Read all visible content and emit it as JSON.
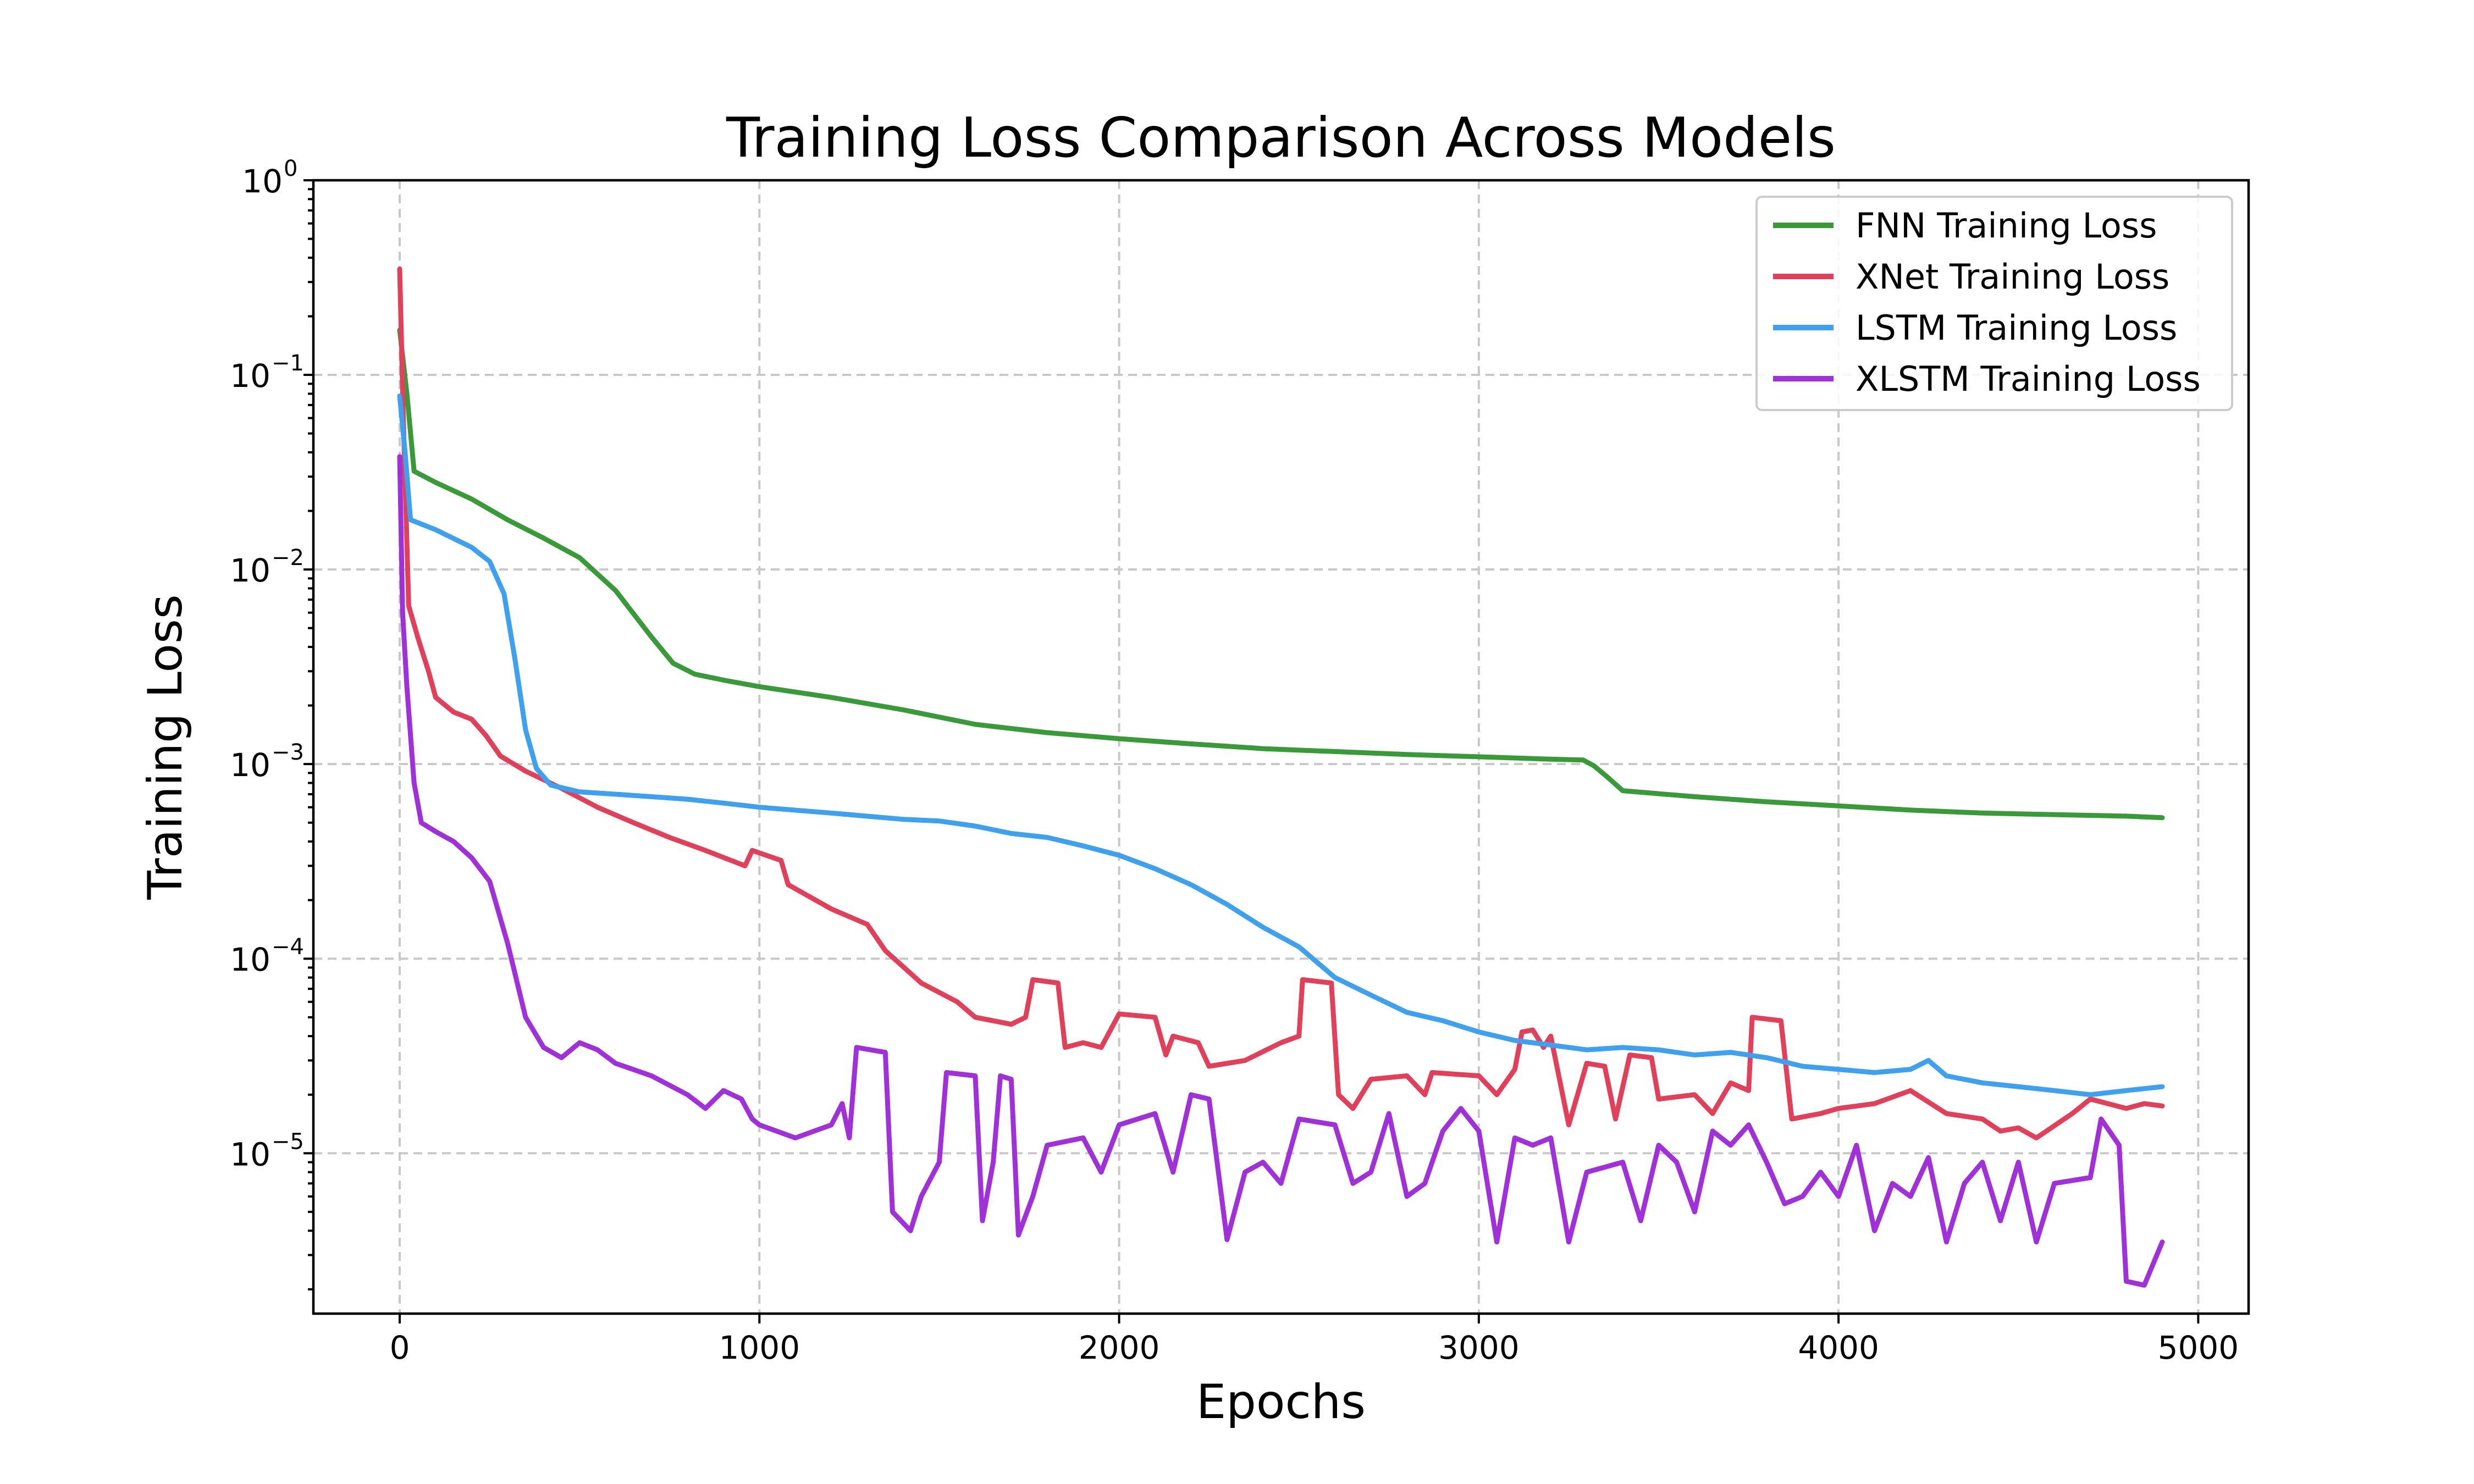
{
  "chart_data": {
    "type": "line",
    "title": "Training Loss Comparison Across Models",
    "xlabel": "Epochs",
    "ylabel": "Training Loss",
    "yscale": "log",
    "xlim": [
      -240,
      5140
    ],
    "ylim": [
      1.5e-06,
      1
    ],
    "xticks": [
      0,
      1000,
      2000,
      3000,
      4000,
      5000
    ],
    "xtick_labels": [
      "0",
      "1000",
      "2000",
      "3000",
      "4000",
      "5000"
    ],
    "yticks": [
      {
        "value": 1.0,
        "base": "10",
        "exp": "0"
      },
      {
        "value": 0.1,
        "base": "10",
        "exp": "−1"
      },
      {
        "value": 0.01,
        "base": "10",
        "exp": "−2"
      },
      {
        "value": 0.001,
        "base": "10",
        "exp": "−3"
      },
      {
        "value": 0.0001,
        "base": "10",
        "exp": "−4"
      },
      {
        "value": 1e-05,
        "base": "10",
        "exp": "−5"
      }
    ],
    "grid": true,
    "legend_position": "upper-right",
    "series": [
      {
        "name": "FNN Training Loss",
        "color": "#3a9a3a",
        "points": [
          [
            0,
            0.17
          ],
          [
            20,
            0.08
          ],
          [
            40,
            0.032
          ],
          [
            100,
            0.028
          ],
          [
            200,
            0.023
          ],
          [
            300,
            0.018
          ],
          [
            400,
            0.0145
          ],
          [
            500,
            0.0115
          ],
          [
            600,
            0.0078
          ],
          [
            700,
            0.0045
          ],
          [
            760,
            0.0033
          ],
          [
            820,
            0.0029
          ],
          [
            900,
            0.0027
          ],
          [
            1000,
            0.0025
          ],
          [
            1200,
            0.0022
          ],
          [
            1400,
            0.0019
          ],
          [
            1600,
            0.0016
          ],
          [
            1800,
            0.00145
          ],
          [
            2000,
            0.00135
          ],
          [
            2200,
            0.00127
          ],
          [
            2400,
            0.0012
          ],
          [
            2600,
            0.00116
          ],
          [
            2800,
            0.00112
          ],
          [
            3000,
            0.00109
          ],
          [
            3200,
            0.00106
          ],
          [
            3290,
            0.00105
          ],
          [
            3320,
            0.00098
          ],
          [
            3360,
            0.00085
          ],
          [
            3400,
            0.00073
          ],
          [
            3600,
            0.00068
          ],
          [
            3800,
            0.00064
          ],
          [
            4000,
            0.00061
          ],
          [
            4200,
            0.00058
          ],
          [
            4400,
            0.00056
          ],
          [
            4600,
            0.00055
          ],
          [
            4800,
            0.00054
          ],
          [
            4900,
            0.00053
          ]
        ]
      },
      {
        "name": "XNet Training Loss",
        "color": "#e0405a",
        "points": [
          [
            0,
            0.35
          ],
          [
            10,
            0.06
          ],
          [
            25,
            0.0065
          ],
          [
            50,
            0.0045
          ],
          [
            80,
            0.003
          ],
          [
            100,
            0.0022
          ],
          [
            150,
            0.00185
          ],
          [
            200,
            0.0017
          ],
          [
            240,
            0.0014
          ],
          [
            280,
            0.0011
          ],
          [
            350,
            0.00092
          ],
          [
            450,
            0.00075
          ],
          [
            550,
            0.0006
          ],
          [
            650,
            0.0005
          ],
          [
            750,
            0.00042
          ],
          [
            850,
            0.00036
          ],
          [
            960,
            0.0003
          ],
          [
            980,
            0.00036
          ],
          [
            1060,
            0.00032
          ],
          [
            1080,
            0.00024
          ],
          [
            1200,
            0.00018
          ],
          [
            1300,
            0.00015
          ],
          [
            1350,
            0.00011
          ],
          [
            1450,
            7.5e-05
          ],
          [
            1550,
            6e-05
          ],
          [
            1600,
            5e-05
          ],
          [
            1700,
            4.6e-05
          ],
          [
            1740,
            5e-05
          ],
          [
            1760,
            7.8e-05
          ],
          [
            1830,
            7.5e-05
          ],
          [
            1850,
            3.5e-05
          ],
          [
            1900,
            3.7e-05
          ],
          [
            1950,
            3.5e-05
          ],
          [
            2000,
            5.2e-05
          ],
          [
            2100,
            5e-05
          ],
          [
            2130,
            3.2e-05
          ],
          [
            2150,
            4e-05
          ],
          [
            2220,
            3.7e-05
          ],
          [
            2250,
            2.8e-05
          ],
          [
            2350,
            3e-05
          ],
          [
            2450,
            3.7e-05
          ],
          [
            2500,
            4e-05
          ],
          [
            2510,
            7.8e-05
          ],
          [
            2590,
            7.5e-05
          ],
          [
            2610,
            2e-05
          ],
          [
            2650,
            1.7e-05
          ],
          [
            2700,
            2.4e-05
          ],
          [
            2800,
            2.5e-05
          ],
          [
            2850,
            2e-05
          ],
          [
            2870,
            2.6e-05
          ],
          [
            3000,
            2.5e-05
          ],
          [
            3050,
            2e-05
          ],
          [
            3100,
            2.7e-05
          ],
          [
            3120,
            4.2e-05
          ],
          [
            3150,
            4.3e-05
          ],
          [
            3180,
            3.5e-05
          ],
          [
            3200,
            4e-05
          ],
          [
            3250,
            1.4e-05
          ],
          [
            3300,
            2.9e-05
          ],
          [
            3350,
            2.8e-05
          ],
          [
            3380,
            1.5e-05
          ],
          [
            3420,
            3.2e-05
          ],
          [
            3480,
            3.1e-05
          ],
          [
            3500,
            1.9e-05
          ],
          [
            3600,
            2e-05
          ],
          [
            3650,
            1.6e-05
          ],
          [
            3700,
            2.3e-05
          ],
          [
            3750,
            2.1e-05
          ],
          [
            3760,
            5e-05
          ],
          [
            3840,
            4.8e-05
          ],
          [
            3870,
            1.5e-05
          ],
          [
            3950,
            1.6e-05
          ],
          [
            4000,
            1.7e-05
          ],
          [
            4100,
            1.8e-05
          ],
          [
            4200,
            2.1e-05
          ],
          [
            4300,
            1.6e-05
          ],
          [
            4400,
            1.5e-05
          ],
          [
            4450,
            1.3e-05
          ],
          [
            4500,
            1.35e-05
          ],
          [
            4550,
            1.2e-05
          ],
          [
            4650,
            1.6e-05
          ],
          [
            4700,
            1.9e-05
          ],
          [
            4800,
            1.7e-05
          ],
          [
            4850,
            1.8e-05
          ],
          [
            4900,
            1.75e-05
          ]
        ]
      },
      {
        "name": "LSTM Training Loss",
        "color": "#3fa0ee",
        "points": [
          [
            0,
            0.078
          ],
          [
            15,
            0.04
          ],
          [
            30,
            0.018
          ],
          [
            100,
            0.016
          ],
          [
            200,
            0.013
          ],
          [
            250,
            0.011
          ],
          [
            290,
            0.0075
          ],
          [
            320,
            0.0035
          ],
          [
            350,
            0.0015
          ],
          [
            380,
            0.00095
          ],
          [
            420,
            0.00078
          ],
          [
            500,
            0.00072
          ],
          [
            600,
            0.0007
          ],
          [
            700,
            0.00068
          ],
          [
            800,
            0.00066
          ],
          [
            900,
            0.00063
          ],
          [
            1000,
            0.0006
          ],
          [
            1200,
            0.00056
          ],
          [
            1400,
            0.00052
          ],
          [
            1500,
            0.00051
          ],
          [
            1600,
            0.00048
          ],
          [
            1700,
            0.00044
          ],
          [
            1800,
            0.00042
          ],
          [
            1900,
            0.00038
          ],
          [
            2000,
            0.00034
          ],
          [
            2100,
            0.00029
          ],
          [
            2200,
            0.00024
          ],
          [
            2300,
            0.00019
          ],
          [
            2400,
            0.000145
          ],
          [
            2500,
            0.000115
          ],
          [
            2600,
            8e-05
          ],
          [
            2700,
            6.5e-05
          ],
          [
            2800,
            5.3e-05
          ],
          [
            2900,
            4.8e-05
          ],
          [
            3000,
            4.2e-05
          ],
          [
            3100,
            3.8e-05
          ],
          [
            3200,
            3.6e-05
          ],
          [
            3300,
            3.4e-05
          ],
          [
            3400,
            3.5e-05
          ],
          [
            3500,
            3.4e-05
          ],
          [
            3600,
            3.2e-05
          ],
          [
            3700,
            3.3e-05
          ],
          [
            3800,
            3.1e-05
          ],
          [
            3900,
            2.8e-05
          ],
          [
            4000,
            2.7e-05
          ],
          [
            4100,
            2.6e-05
          ],
          [
            4200,
            2.7e-05
          ],
          [
            4250,
            3e-05
          ],
          [
            4300,
            2.5e-05
          ],
          [
            4400,
            2.3e-05
          ],
          [
            4500,
            2.2e-05
          ],
          [
            4600,
            2.1e-05
          ],
          [
            4700,
            2e-05
          ],
          [
            4800,
            2.1e-05
          ],
          [
            4900,
            2.2e-05
          ]
        ]
      },
      {
        "name": "XLSTM Training Loss",
        "color": "#a030d8",
        "points": [
          [
            0,
            0.038
          ],
          [
            8,
            0.006
          ],
          [
            20,
            0.0025
          ],
          [
            40,
            0.0008
          ],
          [
            60,
            0.0005
          ],
          [
            100,
            0.00045
          ],
          [
            150,
            0.0004
          ],
          [
            200,
            0.00033
          ],
          [
            250,
            0.00025
          ],
          [
            300,
            0.00012
          ],
          [
            350,
            5e-05
          ],
          [
            400,
            3.5e-05
          ],
          [
            450,
            3.1e-05
          ],
          [
            500,
            3.7e-05
          ],
          [
            550,
            3.4e-05
          ],
          [
            600,
            2.9e-05
          ],
          [
            700,
            2.5e-05
          ],
          [
            800,
            2e-05
          ],
          [
            850,
            1.7e-05
          ],
          [
            900,
            2.1e-05
          ],
          [
            950,
            1.9e-05
          ],
          [
            980,
            1.5e-05
          ],
          [
            1000,
            1.4e-05
          ],
          [
            1100,
            1.2e-05
          ],
          [
            1200,
            1.4e-05
          ],
          [
            1230,
            1.8e-05
          ],
          [
            1250,
            1.2e-05
          ],
          [
            1270,
            3.5e-05
          ],
          [
            1350,
            3.3e-05
          ],
          [
            1370,
            5e-06
          ],
          [
            1420,
            4e-06
          ],
          [
            1450,
            6e-06
          ],
          [
            1500,
            9e-06
          ],
          [
            1520,
            2.6e-05
          ],
          [
            1600,
            2.5e-05
          ],
          [
            1620,
            4.5e-06
          ],
          [
            1650,
            9e-06
          ],
          [
            1670,
            2.5e-05
          ],
          [
            1700,
            2.4e-05
          ],
          [
            1720,
            3.8e-06
          ],
          [
            1760,
            6e-06
          ],
          [
            1800,
            1.1e-05
          ],
          [
            1900,
            1.2e-05
          ],
          [
            1950,
            8e-06
          ],
          [
            2000,
            1.4e-05
          ],
          [
            2100,
            1.6e-05
          ],
          [
            2150,
            8e-06
          ],
          [
            2200,
            2e-05
          ],
          [
            2250,
            1.9e-05
          ],
          [
            2300,
            3.6e-06
          ],
          [
            2350,
            8e-06
          ],
          [
            2400,
            9e-06
          ],
          [
            2450,
            7e-06
          ],
          [
            2500,
            1.5e-05
          ],
          [
            2600,
            1.4e-05
          ],
          [
            2650,
            7e-06
          ],
          [
            2700,
            8e-06
          ],
          [
            2750,
            1.6e-05
          ],
          [
            2800,
            6e-06
          ],
          [
            2850,
            7e-06
          ],
          [
            2900,
            1.3e-05
          ],
          [
            2950,
            1.7e-05
          ],
          [
            3000,
            1.3e-05
          ],
          [
            3050,
            3.5e-06
          ],
          [
            3100,
            1.2e-05
          ],
          [
            3150,
            1.1e-05
          ],
          [
            3200,
            1.2e-05
          ],
          [
            3250,
            3.5e-06
          ],
          [
            3300,
            8e-06
          ],
          [
            3400,
            9e-06
          ],
          [
            3450,
            4.5e-06
          ],
          [
            3500,
            1.1e-05
          ],
          [
            3550,
            9e-06
          ],
          [
            3600,
            5e-06
          ],
          [
            3650,
            1.3e-05
          ],
          [
            3700,
            1.1e-05
          ],
          [
            3750,
            1.4e-05
          ],
          [
            3800,
            9e-06
          ],
          [
            3850,
            5.5e-06
          ],
          [
            3900,
            6e-06
          ],
          [
            3950,
            8e-06
          ],
          [
            4000,
            6e-06
          ],
          [
            4050,
            1.1e-05
          ],
          [
            4100,
            4e-06
          ],
          [
            4150,
            7e-06
          ],
          [
            4200,
            6e-06
          ],
          [
            4250,
            9.5e-06
          ],
          [
            4300,
            3.5e-06
          ],
          [
            4350,
            7e-06
          ],
          [
            4400,
            9e-06
          ],
          [
            4450,
            4.5e-06
          ],
          [
            4500,
            9e-06
          ],
          [
            4550,
            3.5e-06
          ],
          [
            4600,
            7e-06
          ],
          [
            4700,
            7.5e-06
          ],
          [
            4730,
            1.5e-05
          ],
          [
            4780,
            1.1e-05
          ],
          [
            4800,
            2.2e-06
          ],
          [
            4850,
            2.1e-06
          ],
          [
            4900,
            3.5e-06
          ]
        ]
      }
    ]
  }
}
